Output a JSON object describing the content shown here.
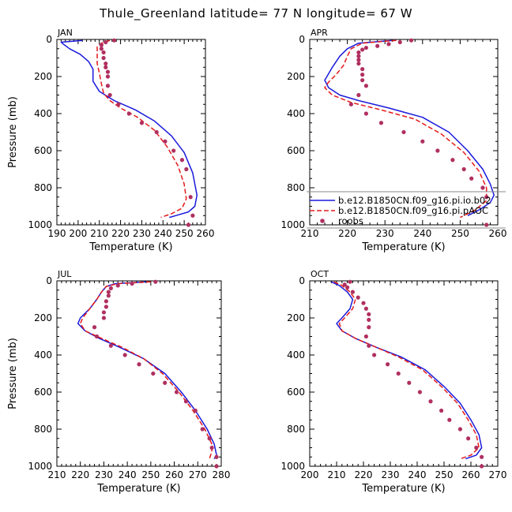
{
  "title": "Thule_Greenland  latitude= 77 N longitude= 67 W",
  "colors": {
    "model1": "#1a1adb",
    "model2": "#e41a1a",
    "obs": "#b03060"
  },
  "legend": {
    "placement": "right-bottom",
    "entries": [
      {
        "label": "b.e12.B1850CN.f09_g16.pi.io.b02",
        "style": "solid"
      },
      {
        "label": "b.e12.B1850CN.f09_g16.pi.pAOC",
        "style": "dashed"
      },
      {
        "label": "roobs",
        "style": "dot"
      }
    ]
  },
  "chart_data": [
    {
      "type": "line",
      "panel": "JAN",
      "xlabel": "Temperature (K)",
      "ylabel": "Pressure (mb)",
      "xlim": [
        190,
        260
      ],
      "ylim": [
        1000,
        0
      ],
      "xticks": [
        190,
        200,
        210,
        220,
        230,
        240,
        250,
        260
      ],
      "yticks": [
        0,
        200,
        400,
        600,
        800,
        1000
      ],
      "series": [
        {
          "name": "b.e12.B1850CN.f09_g16.pi.io.b02",
          "style": "solid",
          "x": [
            202,
            192,
            193,
            196,
            201,
            205,
            207,
            207,
            210,
            217,
            227,
            236,
            244,
            250,
            254,
            256,
            255,
            252,
            246,
            243
          ],
          "y": [
            5,
            15,
            25,
            50,
            80,
            120,
            160,
            225,
            280,
            330,
            380,
            440,
            520,
            610,
            720,
            840,
            900,
            930,
            950,
            960
          ]
        },
        {
          "name": "b.e12.B1850CN.f09_g16.pi.pAOC",
          "style": "dashed",
          "x": [
            215,
            211,
            209,
            209,
            209,
            210,
            211,
            212,
            215,
            220,
            228,
            236,
            242,
            247,
            250,
            251,
            249,
            244,
            239
          ],
          "y": [
            5,
            20,
            40,
            80,
            130,
            180,
            240,
            290,
            330,
            370,
            420,
            490,
            580,
            680,
            780,
            860,
            910,
            940,
            960
          ]
        },
        {
          "name": "roobs",
          "style": "dot",
          "x": [
            217,
            213,
            211,
            211,
            212,
            212,
            213,
            213,
            214,
            214,
            214,
            215,
            219,
            224,
            230,
            237,
            241,
            245,
            249,
            251,
            253,
            254,
            252
          ],
          "y": [
            5,
            15,
            30,
            50,
            70,
            100,
            130,
            150,
            175,
            200,
            250,
            300,
            350,
            400,
            450,
            500,
            550,
            600,
            650,
            700,
            850,
            950,
            1000
          ]
        }
      ]
    },
    {
      "type": "line",
      "panel": "APR",
      "xlabel": "Temperature (K)",
      "ylabel": "Pressure (mb)",
      "xlim": [
        210,
        260
      ],
      "ylim": [
        1000,
        0
      ],
      "xticks": [
        210,
        220,
        230,
        240,
        250,
        260
      ],
      "yticks": [
        0,
        200,
        400,
        600,
        800,
        1000
      ],
      "series": [
        {
          "name": "b.e12.B1850CN.f09_g16.pi.io.b02",
          "style": "solid",
          "x": [
            232,
            223,
            220,
            218,
            216,
            214,
            215,
            218,
            223,
            231,
            240,
            247,
            252,
            256,
            258,
            259,
            258,
            255,
            252
          ],
          "y": [
            5,
            20,
            50,
            90,
            150,
            220,
            260,
            300,
            330,
            370,
            420,
            500,
            600,
            700,
            780,
            840,
            880,
            920,
            950
          ]
        },
        {
          "name": "b.e12.B1850CN.f09_g16.pi.pAOC",
          "style": "dashed",
          "x": [
            233,
            224,
            221,
            220,
            219,
            217,
            215,
            214,
            216,
            221,
            229,
            238,
            245,
            251,
            255,
            257,
            257,
            254,
            250
          ],
          "y": [
            5,
            20,
            50,
            90,
            140,
            190,
            230,
            260,
            300,
            340,
            380,
            430,
            510,
            610,
            710,
            800,
            870,
            920,
            960
          ]
        },
        {
          "name": "roobs",
          "style": "dot",
          "x": [
            237,
            234,
            231,
            228,
            225,
            224,
            223,
            223,
            223,
            223,
            224,
            224,
            224,
            225,
            223,
            221,
            225,
            229,
            235,
            240,
            244,
            248,
            251,
            253,
            256,
            257,
            257
          ],
          "y": [
            5,
            15,
            25,
            35,
            45,
            55,
            70,
            90,
            110,
            130,
            160,
            190,
            220,
            250,
            300,
            350,
            400,
            450,
            500,
            550,
            600,
            650,
            700,
            750,
            800,
            850,
            1000
          ]
        }
      ]
    },
    {
      "type": "line",
      "panel": "JUL",
      "xlabel": "Temperature (K)",
      "ylabel": "Pressure (mb)",
      "xlim": [
        210,
        280
      ],
      "ylim": [
        1000,
        0
      ],
      "xticks": [
        210,
        220,
        230,
        240,
        250,
        260,
        270,
        280
      ],
      "yticks": [
        0,
        200,
        400,
        600,
        800,
        1000
      ],
      "series": [
        {
          "name": "b.e12.B1850CN.f09_g16.pi.io.b02",
          "style": "solid",
          "x": [
            248,
            235,
            231,
            229,
            227,
            224,
            220,
            219,
            222,
            228,
            237,
            247,
            256,
            263,
            269,
            274,
            277,
            278,
            277
          ],
          "y": [
            5,
            15,
            30,
            60,
            100,
            150,
            200,
            230,
            270,
            310,
            360,
            420,
            500,
            600,
            700,
            800,
            880,
            940,
            960
          ]
        },
        {
          "name": "b.e12.B1850CN.f09_g16.pi.pAOC",
          "style": "dashed",
          "x": [
            250,
            236,
            231,
            229,
            227,
            224,
            221,
            220,
            222,
            229,
            238,
            247,
            255,
            262,
            268,
            273,
            276,
            276,
            275
          ],
          "y": [
            5,
            15,
            30,
            60,
            100,
            150,
            200,
            230,
            270,
            310,
            360,
            420,
            500,
            600,
            700,
            800,
            880,
            920,
            960
          ]
        },
        {
          "name": "roobs",
          "style": "dot",
          "x": [
            252,
            242,
            236,
            233,
            232,
            232,
            231,
            231,
            230,
            230,
            226,
            227,
            233,
            239,
            245,
            251,
            256,
            261,
            265,
            269,
            272,
            275,
            276,
            278,
            278
          ],
          "y": [
            5,
            15,
            25,
            40,
            60,
            80,
            110,
            140,
            170,
            200,
            250,
            300,
            350,
            400,
            450,
            500,
            550,
            600,
            650,
            700,
            800,
            850,
            900,
            950,
            1000
          ]
        }
      ]
    },
    {
      "type": "line",
      "panel": "OCT",
      "xlabel": "Temperature (K)",
      "ylabel": "Pressure (mb)",
      "xlim": [
        200,
        270
      ],
      "ylim": [
        1000,
        0
      ],
      "xticks": [
        200,
        210,
        220,
        230,
        240,
        250,
        260,
        270
      ],
      "yticks": [
        0,
        200,
        400,
        600,
        800,
        1000
      ],
      "series": [
        {
          "name": "b.e12.B1850CN.f09_g16.pi.io.b02",
          "style": "solid",
          "x": [
            208,
            211,
            214,
            216,
            215,
            212,
            210,
            212,
            217,
            225,
            234,
            243,
            250,
            256,
            260,
            263,
            264,
            262,
            258
          ],
          "y": [
            5,
            25,
            60,
            100,
            150,
            200,
            230,
            270,
            310,
            360,
            410,
            480,
            570,
            660,
            750,
            830,
            900,
            940,
            960
          ]
        },
        {
          "name": "b.e12.B1850CN.f09_g16.pi.pAOC",
          "style": "dashed",
          "x": [
            209,
            212,
            215,
            217,
            216,
            213,
            211,
            212,
            217,
            225,
            233,
            242,
            249,
            255,
            259,
            262,
            263,
            260,
            256
          ],
          "y": [
            5,
            25,
            60,
            100,
            150,
            200,
            230,
            270,
            310,
            360,
            410,
            480,
            570,
            660,
            750,
            830,
            900,
            940,
            960
          ]
        },
        {
          "name": "roobs",
          "style": "dot",
          "x": [
            215,
            213,
            214,
            216,
            218,
            220,
            221,
            222,
            222,
            222,
            221,
            222,
            224,
            229,
            233,
            237,
            241,
            245,
            249,
            252,
            256,
            259,
            262,
            264,
            264
          ],
          "y": [
            5,
            20,
            35,
            60,
            90,
            120,
            150,
            180,
            210,
            250,
            300,
            350,
            400,
            450,
            500,
            550,
            600,
            650,
            700,
            750,
            800,
            850,
            900,
            950,
            1000
          ]
        }
      ]
    }
  ]
}
